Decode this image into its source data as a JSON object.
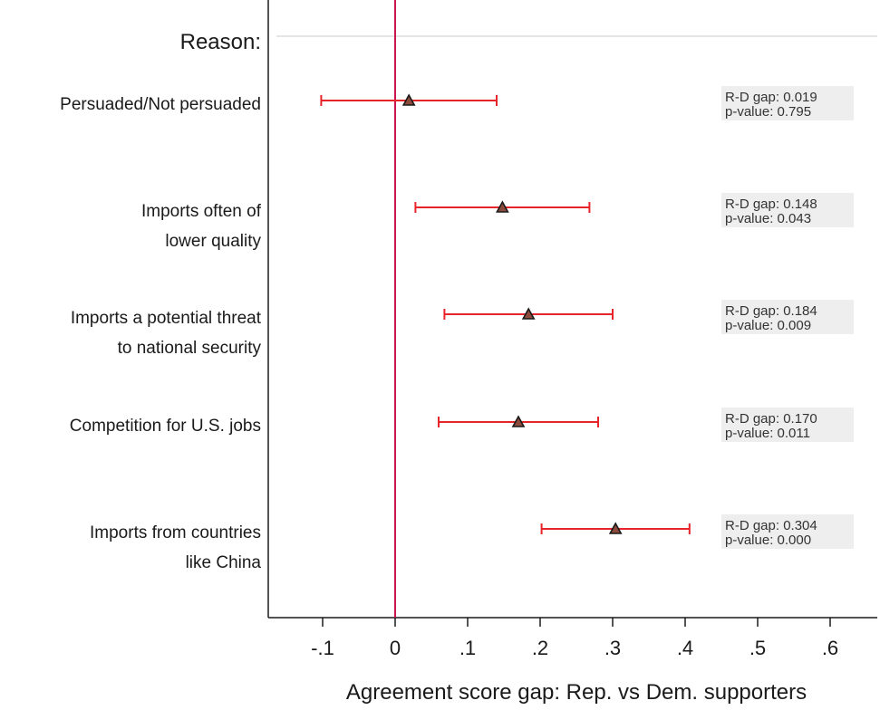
{
  "chart_data": {
    "type": "scatter",
    "subtype": "coefficient-plot-with-confidence-intervals",
    "header": "Reason:",
    "xlabel": "Agreement score gap: Rep. vs Dem. supporters",
    "xlim": [
      -0.175,
      0.665
    ],
    "xticks": [
      -0.1,
      0,
      0.1,
      0.2,
      0.3,
      0.4,
      0.5,
      0.6
    ],
    "xtick_labels": [
      "-.1",
      "0",
      ".1",
      ".2",
      ".3",
      ".4",
      ".5",
      ".6"
    ],
    "reference_line_x": 0,
    "grid": false,
    "legend": "none",
    "colors": {
      "ci": "#e8242b",
      "reference_line": "#c8174f",
      "marker_edge": "#1a1a1a",
      "marker_fill": "#8a4a3c",
      "annotation_bg": "#eeeeee",
      "header_rule": "#e6e6e6"
    },
    "categories": [
      {
        "label_lines": [
          "Persuaded/Not persuaded"
        ],
        "estimate": 0.019,
        "ci_low": -0.102,
        "ci_high": 0.14,
        "annotation": [
          "R-D gap: 0.019",
          "p-value: 0.795"
        ]
      },
      {
        "label_lines": [
          "Imports often of",
          "lower quality"
        ],
        "estimate": 0.148,
        "ci_low": 0.028,
        "ci_high": 0.268,
        "annotation": [
          "R-D gap: 0.148",
          "p-value: 0.043"
        ]
      },
      {
        "label_lines": [
          "Imports a potential threat",
          "to national security"
        ],
        "estimate": 0.184,
        "ci_low": 0.068,
        "ci_high": 0.3,
        "annotation": [
          "R-D gap: 0.184",
          "p-value: 0.009"
        ]
      },
      {
        "label_lines": [
          "Competition for U.S. jobs"
        ],
        "estimate": 0.17,
        "ci_low": 0.06,
        "ci_high": 0.28,
        "annotation": [
          "R-D gap: 0.170",
          "p-value: 0.011"
        ]
      },
      {
        "label_lines": [
          "Imports from countries",
          "like China"
        ],
        "estimate": 0.304,
        "ci_low": 0.202,
        "ci_high": 0.406,
        "annotation": [
          "R-D gap: 0.304",
          "p-value: 0.000"
        ]
      }
    ]
  }
}
